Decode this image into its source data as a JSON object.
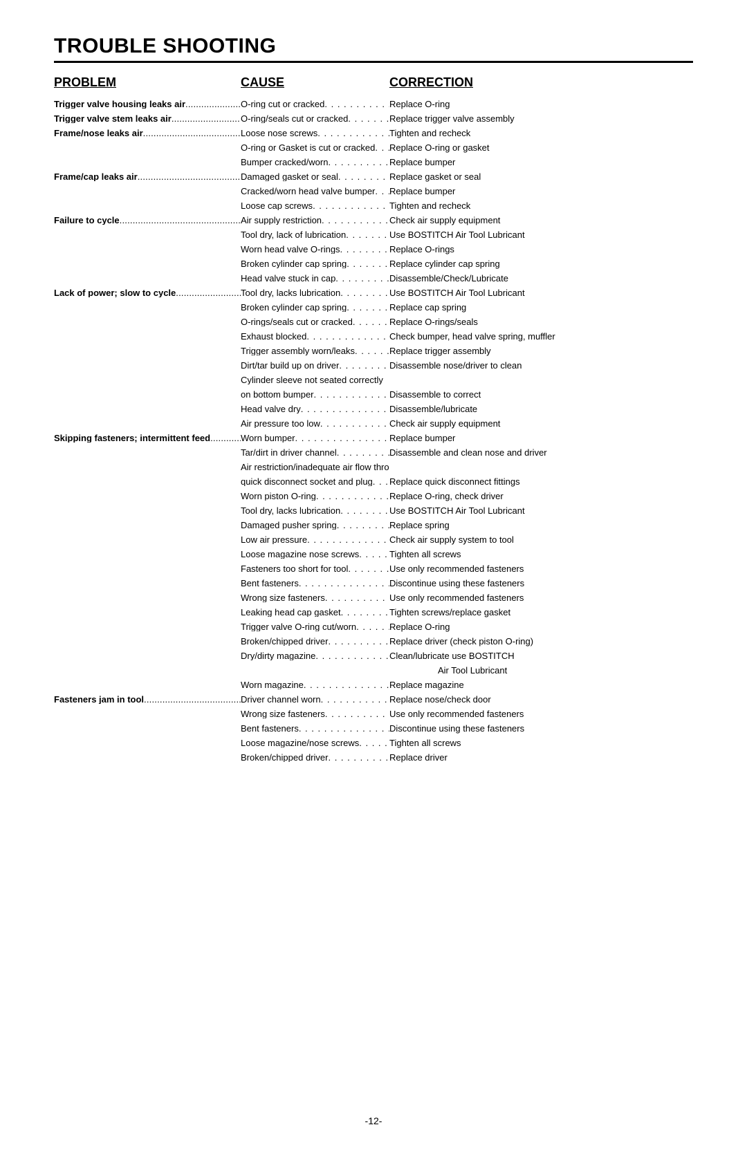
{
  "title": "TROUBLE SHOOTING",
  "headers": {
    "problem": "PROBLEM",
    "cause": "CAUSE",
    "correction": "CORRECTION"
  },
  "page_number": "-12-",
  "rows": [
    {
      "problem": "Trigger valve housing leaks air",
      "cause": "O-ring cut or cracked",
      "correction": "Replace O-ring"
    },
    {
      "problem": "Trigger valve stem leaks air",
      "cause": "O-ring/seals cut or cracked",
      "correction": "Replace trigger valve assembly"
    },
    {
      "problem": "Frame/nose leaks air",
      "cause": "Loose nose screws",
      "correction": "Tighten and recheck"
    },
    {
      "cause": "O-ring or Gasket is cut or cracked",
      "correction": "Replace O-ring or gasket"
    },
    {
      "cause": "Bumper cracked/worn",
      "correction": "Replace bumper"
    },
    {
      "problem": "Frame/cap leaks air",
      "cause": "Damaged gasket or seal",
      "correction": "Replace gasket or seal"
    },
    {
      "cause": "Cracked/worn head valve bumper",
      "correction": "Replace bumper"
    },
    {
      "cause": "Loose cap screws",
      "correction": "Tighten and recheck"
    },
    {
      "problem": "Failure to cycle",
      "cause": "Air supply restriction",
      "correction": "Check air supply equipment"
    },
    {
      "cause": "Tool dry, lack of lubrication",
      "correction": "Use BOSTITCH Air Tool Lubricant"
    },
    {
      "cause": "Worn head valve O-rings",
      "correction": "Replace O-rings"
    },
    {
      "cause": "Broken cylinder cap spring",
      "correction": "Replace cylinder cap spring"
    },
    {
      "cause": "Head valve stuck in cap",
      "correction": "Disassemble/Check/Lubricate"
    },
    {
      "problem": "Lack of power; slow to cycle",
      "cause": "Tool dry, lacks lubrication",
      "correction": "Use BOSTITCH Air Tool Lubricant"
    },
    {
      "cause": "Broken cylinder cap spring",
      "correction": "Replace cap spring"
    },
    {
      "cause": "O-rings/seals cut or cracked",
      "correction": "Replace O-rings/seals"
    },
    {
      "cause": "Exhaust blocked",
      "correction": "Check bumper, head valve spring, muffler"
    },
    {
      "cause": "Trigger assembly worn/leaks",
      "correction": "Replace trigger assembly"
    },
    {
      "cause": "Dirt/tar build up on driver",
      "correction": "Disassemble nose/driver to clean"
    },
    {
      "cause": "Cylinder sleeve not seated correctly",
      "no_leader_cause": true
    },
    {
      "cause": "on bottom bumper",
      "correction": "Disassemble to correct"
    },
    {
      "cause": "Head valve dry",
      "correction": "Disassemble/lubricate"
    },
    {
      "cause": "Air pressure too low",
      "correction": "Check air supply equipment"
    },
    {
      "problem": "Skipping fasteners;  intermittent feed",
      "cause": "Worn bumper",
      "correction": "Replace bumper"
    },
    {
      "cause": "Tar/dirt in driver channel",
      "correction": "Disassemble and clean nose and driver"
    },
    {
      "cause": "Air restriction/inadequate air flow through",
      "no_leader_cause": true
    },
    {
      "cause": "quick disconnect socket and plug",
      "correction": "Replace quick disconnect fittings"
    },
    {
      "cause": "Worn piston O-ring",
      "correction": "Replace O-ring, check driver"
    },
    {
      "cause": "Tool dry, lacks lubrication",
      "correction": "Use BOSTITCH Air Tool Lubricant"
    },
    {
      "cause": "Damaged pusher spring",
      "correction": "Replace spring"
    },
    {
      "cause": "Low air pressure",
      "correction": "Check air supply system to tool"
    },
    {
      "cause": "Loose magazine nose screws",
      "correction": "Tighten all screws"
    },
    {
      "cause": "Fasteners too short for tool",
      "correction": "Use only recommended fasteners"
    },
    {
      "cause": "Bent fasteners",
      "correction": "Discontinue using these fasteners"
    },
    {
      "cause": "Wrong size fasteners",
      "correction": "Use only recommended fasteners"
    },
    {
      "cause": "Leaking head cap gasket",
      "correction": "Tighten screws/replace gasket"
    },
    {
      "cause": "Trigger valve O-ring cut/worn",
      "correction": "Replace O-ring"
    },
    {
      "cause": "Broken/chipped driver",
      "correction": "Replace driver (check piston O-ring)"
    },
    {
      "cause": "Dry/dirty magazine",
      "correction": "Clean/lubricate use BOSTITCH"
    },
    {
      "continuation": "Air Tool Lubricant"
    },
    {
      "cause": "Worn magazine",
      "correction": "Replace magazine"
    },
    {
      "problem": "Fasteners jam in tool",
      "cause": "Driver channel worn",
      "correction": "Replace nose/check door"
    },
    {
      "cause": "Wrong size fasteners",
      "correction": "Use only recommended fasteners"
    },
    {
      "cause": "Bent fasteners",
      "correction": "Discontinue using these fasteners"
    },
    {
      "cause": "Loose magazine/nose screws",
      "correction": "Tighten all screws"
    },
    {
      "cause": "Broken/chipped driver",
      "correction": "Replace driver"
    }
  ]
}
